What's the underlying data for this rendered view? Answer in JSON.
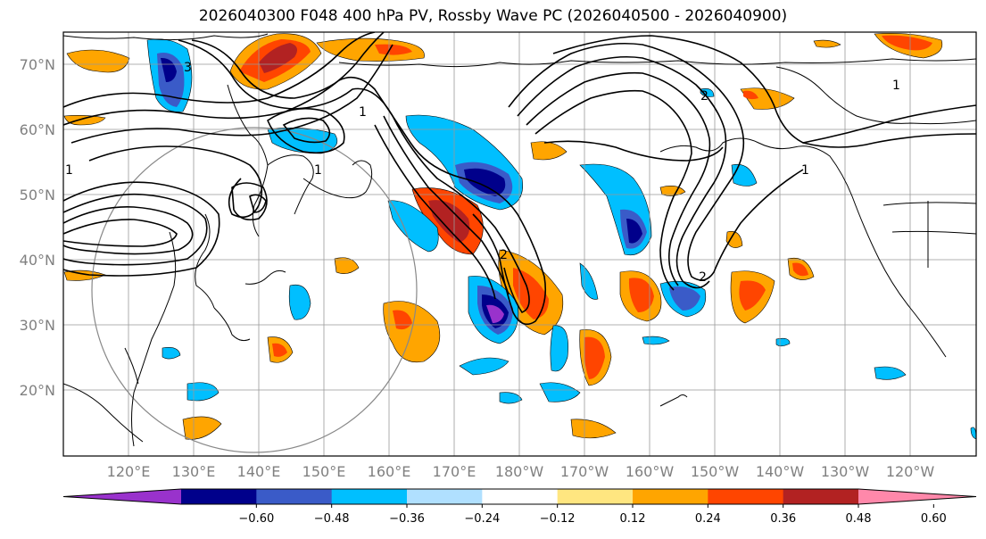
{
  "title": "2026040300 F048 400 hPa PV, Rossby Wave PC (2026040500 - 2026040900)",
  "lat_labels": [
    "70°N",
    "60°N",
    "50°N",
    "40°N",
    "30°N",
    "20°N"
  ],
  "lon_labels": [
    "120°E",
    "130°E",
    "140°E",
    "150°E",
    "160°E",
    "170°E",
    "180°W",
    "170°W",
    "160°W",
    "150°W",
    "140°W",
    "130°W",
    "120°W"
  ],
  "contour_labels": [
    "1",
    "3",
    "1",
    "1",
    "2",
    "2",
    "1",
    "1",
    "2"
  ],
  "colorbar": {
    "ticks": [
      "−0.60",
      "−0.48",
      "−0.36",
      "−0.24",
      "−0.12",
      "0.12",
      "0.24",
      "0.36",
      "0.48",
      "0.60"
    ],
    "colors": [
      "#9932cc",
      "#00008b",
      "#3a5bc8",
      "#00bfff",
      "#b0e0ff",
      "#ffffff",
      "#ffe680",
      "#ffa500",
      "#ff4500",
      "#b22222",
      "#ff88aa"
    ]
  },
  "colors": {
    "neg_deep": "#00008b",
    "neg_mid": "#3a5bc8",
    "neg_light": "#00bfff",
    "neg_pale": "#b0e0ff",
    "neg_extreme": "#9932cc",
    "pos_pale": "#ffe680",
    "pos_light": "#ffa500",
    "pos_mid": "#ff4500",
    "pos_deep": "#b22222",
    "pos_extreme": "#ff88aa",
    "grid": "#999999",
    "coast": "#000000"
  }
}
